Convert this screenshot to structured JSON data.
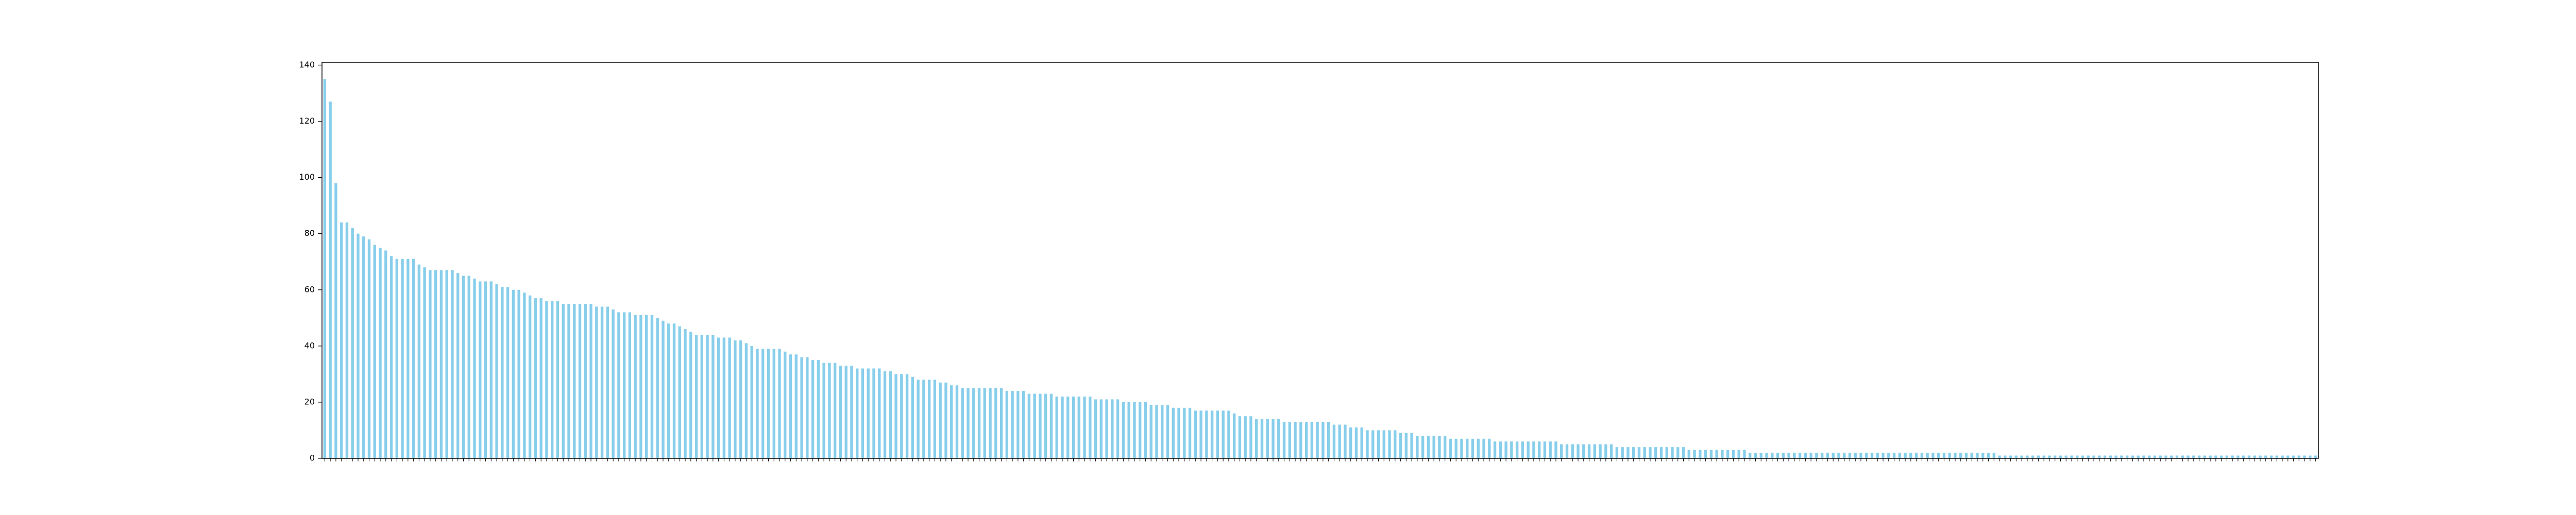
{
  "chart_data": {
    "type": "bar",
    "color": "#87ceeb",
    "ylim": [
      0,
      141
    ],
    "yticks": [
      0,
      20,
      40,
      60,
      80,
      100,
      120,
      140
    ],
    "values": [
      135,
      127,
      98,
      84,
      84,
      82,
      80,
      79,
      78,
      76,
      75,
      74,
      72,
      71,
      71,
      71,
      71,
      69,
      68,
      67,
      67,
      67,
      67,
      67,
      66,
      65,
      65,
      64,
      63,
      63,
      63,
      62,
      61,
      61,
      60,
      60,
      59,
      58,
      57,
      57,
      56,
      56,
      56,
      55,
      55,
      55,
      55,
      55,
      55,
      54,
      54,
      54,
      53,
      52,
      52,
      52,
      51,
      51,
      51,
      51,
      50,
      49,
      48,
      48,
      47,
      46,
      45,
      44,
      44,
      44,
      44,
      43,
      43,
      43,
      42,
      42,
      41,
      40,
      39,
      39,
      39,
      39,
      39,
      38,
      37,
      37,
      36,
      36,
      35,
      35,
      34,
      34,
      34,
      33,
      33,
      33,
      32,
      32,
      32,
      32,
      32,
      31,
      31,
      30,
      30,
      30,
      29,
      28,
      28,
      28,
      28,
      27,
      27,
      26,
      26,
      25,
      25,
      25,
      25,
      25,
      25,
      25,
      25,
      24,
      24,
      24,
      24,
      23,
      23,
      23,
      23,
      23,
      22,
      22,
      22,
      22,
      22,
      22,
      22,
      21,
      21,
      21,
      21,
      21,
      20,
      20,
      20,
      20,
      20,
      19,
      19,
      19,
      19,
      18,
      18,
      18,
      18,
      17,
      17,
      17,
      17,
      17,
      17,
      17,
      16,
      15,
      15,
      15,
      14,
      14,
      14,
      14,
      14,
      13,
      13,
      13,
      13,
      13,
      13,
      13,
      13,
      13,
      12,
      12,
      12,
      11,
      11,
      11,
      10,
      10,
      10,
      10,
      10,
      10,
      9,
      9,
      9,
      8,
      8,
      8,
      8,
      8,
      8,
      7,
      7,
      7,
      7,
      7,
      7,
      7,
      7,
      6,
      6,
      6,
      6,
      6,
      6,
      6,
      6,
      6,
      6,
      6,
      6,
      5,
      5,
      5,
      5,
      5,
      5,
      5,
      5,
      5,
      5,
      4,
      4,
      4,
      4,
      4,
      4,
      4,
      4,
      4,
      4,
      4,
      4,
      4,
      3,
      3,
      3,
      3,
      3,
      3,
      3,
      3,
      3,
      3,
      3,
      2,
      2,
      2,
      2,
      2,
      2,
      2,
      2,
      2,
      2,
      2,
      2,
      2,
      2,
      2,
      2,
      2,
      2,
      2,
      2,
      2,
      2,
      2,
      2,
      2,
      2,
      2,
      2,
      2,
      2,
      2,
      2,
      2,
      2,
      2,
      2,
      2,
      2,
      2,
      2,
      2,
      2,
      2,
      2,
      2,
      1,
      1,
      1,
      1,
      1,
      1,
      1,
      1,
      1,
      1,
      1,
      1,
      1,
      1,
      1,
      1,
      1,
      1,
      1,
      1,
      1,
      1,
      1,
      1,
      1,
      1,
      1,
      1,
      1,
      1,
      1,
      1,
      1,
      1,
      1,
      1,
      1,
      1,
      1,
      1,
      1,
      1,
      1,
      1,
      1,
      1,
      1,
      1,
      1,
      1,
      1,
      1,
      1,
      1,
      1,
      1,
      1,
      1
    ]
  }
}
